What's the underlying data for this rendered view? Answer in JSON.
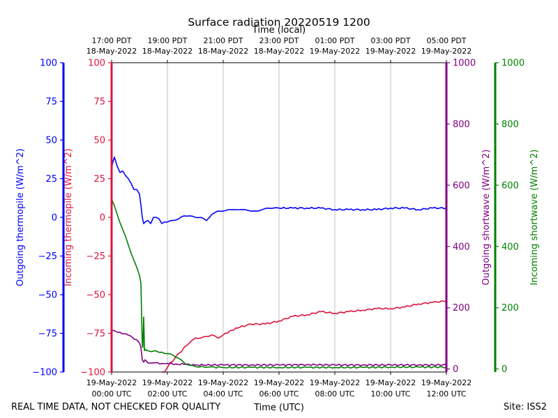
{
  "chart_data": {
    "type": "line",
    "title": "Surface radiation 20220519 1200",
    "top_axis_title": "Time (local)",
    "xlabel": "Time (UTC)",
    "footer_left": "REAL TIME DATA, NOT CHECKED FOR QUALITY",
    "footer_right": "Site: ISS2",
    "x_range_hours_utc": [
      0,
      12
    ],
    "x_ticks_utc": [
      {
        "hour": 0,
        "line1": "19-May-2022",
        "line2": "00:00 UTC"
      },
      {
        "hour": 2,
        "line1": "19-May-2022",
        "line2": "02:00 UTC"
      },
      {
        "hour": 4,
        "line1": "19-May-2022",
        "line2": "04:00 UTC"
      },
      {
        "hour": 6,
        "line1": "19-May-2022",
        "line2": "06:00 UTC"
      },
      {
        "hour": 8,
        "line1": "19-May-2022",
        "line2": "08:00 UTC"
      },
      {
        "hour": 10,
        "line1": "19-May-2022",
        "line2": "10:00 UTC"
      },
      {
        "hour": 12,
        "line1": "19-May-2022",
        "line2": "12:00 UTC"
      }
    ],
    "x_ticks_local": [
      {
        "hour": 0,
        "line1": "17:00 PDT",
        "line2": "18-May-2022"
      },
      {
        "hour": 2,
        "line1": "19:00 PDT",
        "line2": "18-May-2022"
      },
      {
        "hour": 4,
        "line1": "21:00 PDT",
        "line2": "18-May-2022"
      },
      {
        "hour": 6,
        "line1": "23:00 PDT",
        "line2": "18-May-2022"
      },
      {
        "hour": 8,
        "line1": "01:00 PDT",
        "line2": "19-May-2022"
      },
      {
        "hour": 10,
        "line1": "03:00 PDT",
        "line2": "19-May-2022"
      },
      {
        "hour": 12,
        "line1": "05:00 PDT",
        "line2": "19-May-2022"
      }
    ],
    "axes": {
      "outgoing_thermopile": {
        "label": "Outgoing thermopile (W/m^2)",
        "range": [
          -100,
          100
        ],
        "ticks": [
          "-100",
          "-75",
          "-50",
          "-25",
          "0",
          "25",
          "50",
          "75",
          "100"
        ],
        "color": "#0000ff"
      },
      "incoming_thermopile": {
        "label": "Incoming thermopile (W/m^2)",
        "range": [
          -100,
          100
        ],
        "ticks": [
          "-100",
          "-75",
          "-50",
          "-25",
          "0",
          "25",
          "50",
          "75",
          "100"
        ],
        "color": "#dc143c"
      },
      "outgoing_shortwave": {
        "label": "Outgoing shortwave (W/m^2)",
        "range": [
          -10,
          1000
        ],
        "ticks": [
          "0",
          "200",
          "400",
          "600",
          "800",
          "1000"
        ],
        "color": "#800080"
      },
      "incoming_shortwave": {
        "label": "Incoming shortwave (W/m^2)",
        "range": [
          -10,
          1000
        ],
        "ticks": [
          "0",
          "200",
          "400",
          "600",
          "800",
          "1000"
        ],
        "color": "#008000"
      }
    },
    "series": [
      {
        "name": "Outgoing thermopile",
        "axis": "outgoing_thermopile",
        "color": "#0000ff",
        "x": [
          0,
          0.05,
          0.1,
          0.2,
          0.3,
          0.4,
          0.5,
          0.6,
          0.7,
          0.8,
          0.9,
          1.0,
          1.05,
          1.1,
          1.15,
          1.2,
          1.3,
          1.4,
          1.5,
          1.6,
          1.7,
          1.8,
          1.9,
          2.0,
          2.2,
          2.4,
          2.6,
          2.8,
          3.0,
          3.2,
          3.4,
          3.6,
          3.8,
          4.0,
          4.2,
          4.4,
          4.6,
          4.8,
          5.0,
          5.2,
          5.4,
          5.6,
          5.8,
          6.0,
          6.5,
          7.0,
          7.5,
          8.0,
          8.5,
          9.0,
          9.5,
          10.0,
          10.5,
          11.0,
          11.5,
          12.0
        ],
        "values": [
          32,
          36,
          39,
          33,
          29,
          30,
          27,
          25,
          22,
          18,
          18,
          15,
          8,
          0,
          -4,
          -3,
          -2,
          -4,
          0,
          0,
          -1,
          -4,
          -3,
          -3,
          -2,
          -1,
          1,
          1,
          0,
          0,
          -2,
          2,
          4,
          4,
          5,
          5,
          5,
          5,
          4,
          4,
          5,
          6,
          6,
          6,
          6,
          6,
          6,
          5,
          5,
          5,
          5,
          6,
          6,
          5,
          6,
          6
        ]
      },
      {
        "name": "Incoming thermopile",
        "axis": "incoming_thermopile",
        "color": "#dc143c",
        "x": [
          1.8,
          1.9,
          2.0,
          2.1,
          2.2,
          2.3,
          2.4,
          2.5,
          2.6,
          2.8,
          3.0,
          3.2,
          3.4,
          3.6,
          3.8,
          4.0,
          4.3,
          4.6,
          5.0,
          5.5,
          6.0,
          6.5,
          7.0,
          7.5,
          8.0,
          8.5,
          9.0,
          9.5,
          10.0,
          10.5,
          11.0,
          11.5,
          12.0
        ],
        "values": [
          -100,
          -100,
          -97,
          -94,
          -93,
          -90,
          -88,
          -87,
          -84,
          -81,
          -78,
          -78,
          -77,
          -76,
          -78,
          -76,
          -73,
          -71,
          -69,
          -69,
          -67,
          -64,
          -63,
          -61,
          -62,
          -61,
          -60,
          -59,
          -59,
          -58,
          -56,
          -55,
          -54
        ]
      },
      {
        "name": "Outgoing shortwave",
        "axis": "outgoing_shortwave",
        "color": "#800080",
        "x": [
          0,
          0.3,
          0.6,
          0.9,
          1.0,
          1.05,
          1.1,
          1.15,
          1.2,
          1.3,
          1.5,
          1.8,
          2.0,
          2.3,
          2.6,
          3.0,
          4.0,
          5.0,
          6.0,
          7.0,
          8.0,
          9.0,
          10.0,
          11.0,
          12.0
        ],
        "values": [
          125,
          120,
          110,
          95,
          85,
          70,
          30,
          22,
          30,
          20,
          20,
          18,
          18,
          16,
          15,
          13,
          13,
          13,
          13,
          14,
          13,
          13,
          13,
          13,
          13
        ]
      },
      {
        "name": "Incoming shortwave",
        "axis": "incoming_shortwave",
        "color": "#008000",
        "x": [
          0,
          0.2,
          0.4,
          0.6,
          0.8,
          1.0,
          1.05,
          1.1,
          1.12,
          1.15,
          1.18,
          1.2,
          1.25,
          1.3,
          1.5,
          1.8,
          2.0,
          2.2,
          2.4,
          2.6,
          2.8,
          3.0,
          3.5,
          4.0,
          5.0,
          6.0,
          7.0,
          8.0,
          9.0,
          10.0,
          11.0,
          12.0
        ],
        "values": [
          555,
          505,
          455,
          405,
          355,
          305,
          280,
          75,
          70,
          170,
          60,
          65,
          60,
          60,
          58,
          55,
          50,
          45,
          35,
          20,
          12,
          8,
          6,
          5,
          5,
          5,
          5,
          5,
          5,
          6,
          6,
          6
        ]
      }
    ]
  }
}
